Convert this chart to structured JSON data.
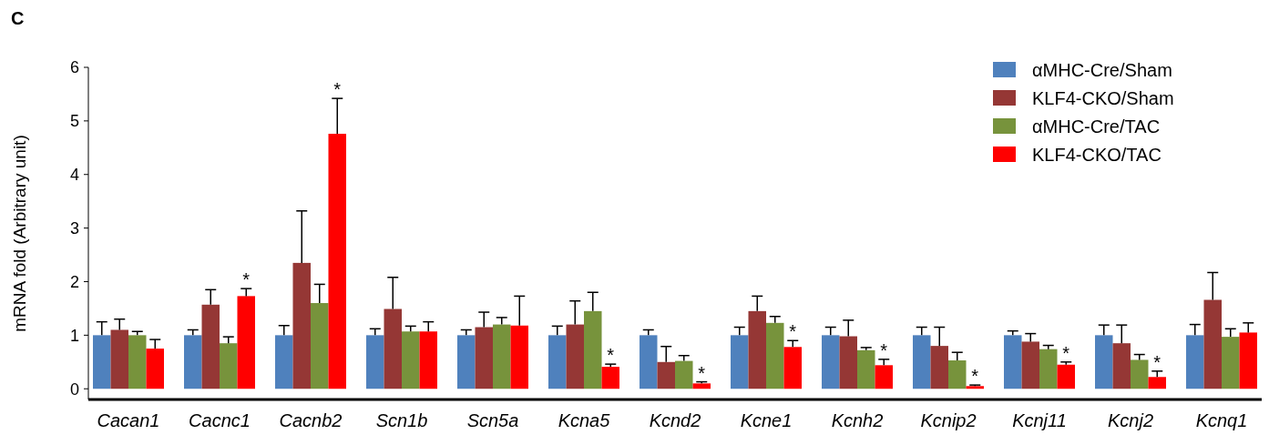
{
  "chart_data": {
    "type": "bar",
    "ylabel": "mRNA  fold (Arbitrary unit)",
    "categories": [
      "Cacan1",
      "Cacnc1",
      "Cacnb2",
      "Scn1b",
      "Scn5a",
      "Kcna5",
      "Kcnd2",
      "Kcne1",
      "Kcnh2",
      "Kcnip2",
      "Kcnj11",
      "Kcnj2",
      "Kcnq1"
    ],
    "series": [
      {
        "name": "αMHC-Cre/Sham",
        "color": "#4f81bd",
        "values": [
          1,
          1,
          1,
          1,
          1,
          1,
          1,
          1,
          1,
          1,
          1,
          1,
          1
        ],
        "errors": [
          [
            1,
            1.25
          ],
          [
            1,
            1.1
          ],
          [
            1,
            1.18
          ],
          [
            1,
            1.12
          ],
          [
            1,
            1.1
          ],
          [
            1,
            1.17
          ],
          [
            1,
            1.1
          ],
          [
            1,
            1.15
          ],
          [
            1,
            1.15
          ],
          [
            1,
            1.15
          ],
          [
            1,
            1.08
          ],
          [
            1,
            1.19
          ],
          [
            1,
            1.2
          ]
        ]
      },
      {
        "name": "KLF4-CKO/Sham",
        "color": "#953735",
        "values": [
          1.1,
          1.57,
          2.35,
          1.49,
          1.15,
          1.2,
          0.5,
          1.45,
          0.98,
          0.8,
          0.88,
          0.85,
          1.66
        ],
        "errors": [
          [
            1.1,
            1.3
          ],
          [
            1.57,
            1.85
          ],
          [
            2.35,
            3.32
          ],
          [
            1.49,
            2.08
          ],
          [
            1.15,
            1.43
          ],
          [
            1.2,
            1.64
          ],
          [
            0.5,
            0.79
          ],
          [
            1.45,
            1.73
          ],
          [
            0.98,
            1.28
          ],
          [
            0.8,
            1.15
          ],
          [
            0.88,
            1.03
          ],
          [
            0.85,
            1.19
          ],
          [
            1.66,
            2.17
          ]
        ]
      },
      {
        "name": "αMHC-Cre/TAC",
        "color": "#77933c",
        "values": [
          1,
          0.85,
          1.6,
          1.07,
          1.2,
          1.45,
          0.52,
          1.23,
          0.72,
          0.53,
          0.74,
          0.54,
          0.97
        ],
        "errors": [
          [
            1,
            1.07
          ],
          [
            0.85,
            0.97
          ],
          [
            1.6,
            1.95
          ],
          [
            1.07,
            1.17
          ],
          [
            1.2,
            1.33
          ],
          [
            1.45,
            1.8
          ],
          [
            0.52,
            0.62
          ],
          [
            1.23,
            1.35
          ],
          [
            0.72,
            0.77
          ],
          [
            0.53,
            0.68
          ],
          [
            0.74,
            0.81
          ],
          [
            0.54,
            0.64
          ],
          [
            0.97,
            1.12
          ]
        ]
      },
      {
        "name": "KLF4-CKO/TAC",
        "color": "#ff0000",
        "values": [
          0.75,
          1.73,
          4.76,
          1.07,
          1.18,
          0.41,
          0.1,
          0.78,
          0.44,
          0.05,
          0.45,
          0.22,
          1.05
        ],
        "value_labels": [
          null,
          "*",
          "*",
          null,
          null,
          "*",
          "*",
          "*",
          "*",
          "*",
          "*",
          "*",
          null
        ],
        "errors": [
          [
            0.75,
            0.92
          ],
          [
            1.73,
            1.87
          ],
          [
            4.76,
            5.42
          ],
          [
            1.07,
            1.25
          ],
          [
            1.18,
            1.73
          ],
          [
            0.41,
            0.46
          ],
          [
            0.1,
            0.13
          ],
          [
            0.78,
            0.9
          ],
          [
            0.44,
            0.55
          ],
          [
            0.05,
            0.07
          ],
          [
            0.45,
            0.5
          ],
          [
            0.22,
            0.33
          ],
          [
            1.05,
            1.23
          ]
        ]
      }
    ],
    "ylim": [
      -0.2,
      6
    ],
    "yticks": [
      0,
      1,
      2,
      3,
      4,
      5,
      6
    ],
    "legend": "top right",
    "annotations": [
      "C"
    ]
  }
}
